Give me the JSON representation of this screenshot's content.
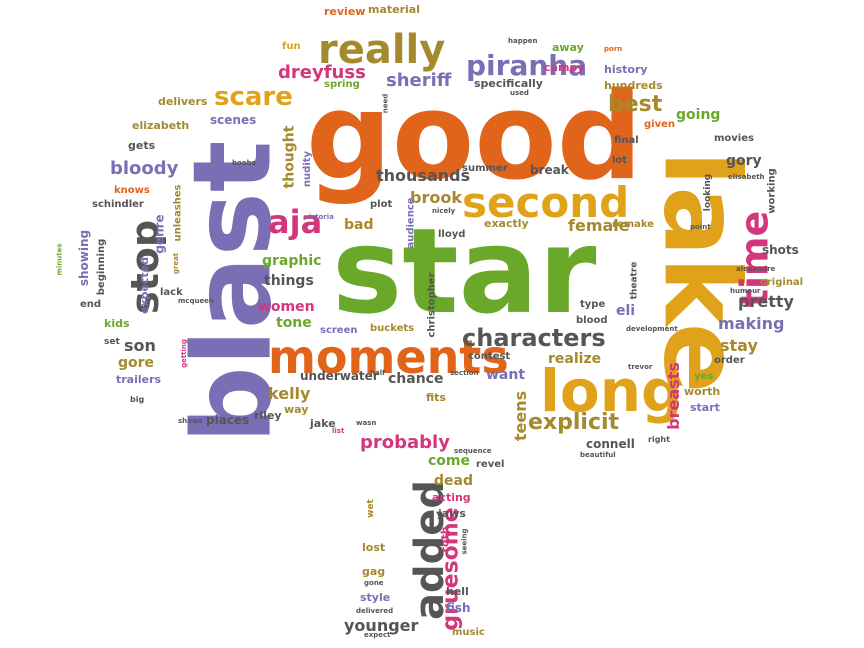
{
  "palette": {
    "orange": "#e0651b",
    "gold": "#e0a21b",
    "green": "#6aa829",
    "purple": "#7a6fb5",
    "magenta": "#d3367a",
    "olive": "#a48a2d",
    "gray": "#555555"
  },
  "words": [
    "good",
    "star",
    "blast",
    "lake",
    "long",
    "moments",
    "second",
    "really",
    "stop",
    "time",
    "added",
    "aja",
    "scare",
    "piranha",
    "characters",
    "explicit",
    "best",
    "bloody",
    "sheriff",
    "dreyfuss",
    "thousands",
    "brook",
    "gruesome",
    "younger",
    "probably",
    "kelly",
    "son",
    "gore",
    "women",
    "tone",
    "graphic",
    "things",
    "bad",
    "female",
    "making",
    "pretty",
    "stay",
    "breasts",
    "teens",
    "want",
    "eli",
    "chance",
    "come",
    "dead",
    "realize",
    "underwater",
    "places",
    "jake",
    "riley",
    "way",
    "fits",
    "acting",
    "jaws",
    "fish",
    "hell",
    "style",
    "lost",
    "gag",
    "roth",
    "music",
    "kids",
    "genre",
    "scenes",
    "thought",
    "gets",
    "elizabeth",
    "delivers",
    "review",
    "material",
    "fun",
    "spring",
    "specifically",
    "campy",
    "hundreds",
    "history",
    "away",
    "going",
    "given",
    "final",
    "lot",
    "movies",
    "gory",
    "shots",
    "original",
    "worth",
    "start",
    "yes",
    "order",
    "connell",
    "revel",
    "audience",
    "lloyd",
    "exactly",
    "remake",
    "break",
    "summer",
    "plot",
    "nudity",
    "christopher",
    "screen",
    "buckets",
    "contest",
    "type",
    "blood",
    "expected",
    "showing",
    "beginning",
    "unleashes",
    "knows",
    "schindler",
    "trailers",
    "lack",
    "end",
    "set",
    "victoria",
    "wet",
    "big",
    "right",
    "beautiful",
    "theatre",
    "shows",
    "porn",
    "happen",
    "need",
    "used",
    "boobs",
    "looking",
    "elisabeth",
    "working",
    "alexandre",
    "humour",
    "trevor",
    "section",
    "development",
    "point",
    "half",
    "wasn",
    "list",
    "seeing",
    "gone",
    "expect",
    "delivered",
    "sequence",
    "minutes",
    "mcqueen",
    "great",
    "getting",
    "nicely"
  ]
}
